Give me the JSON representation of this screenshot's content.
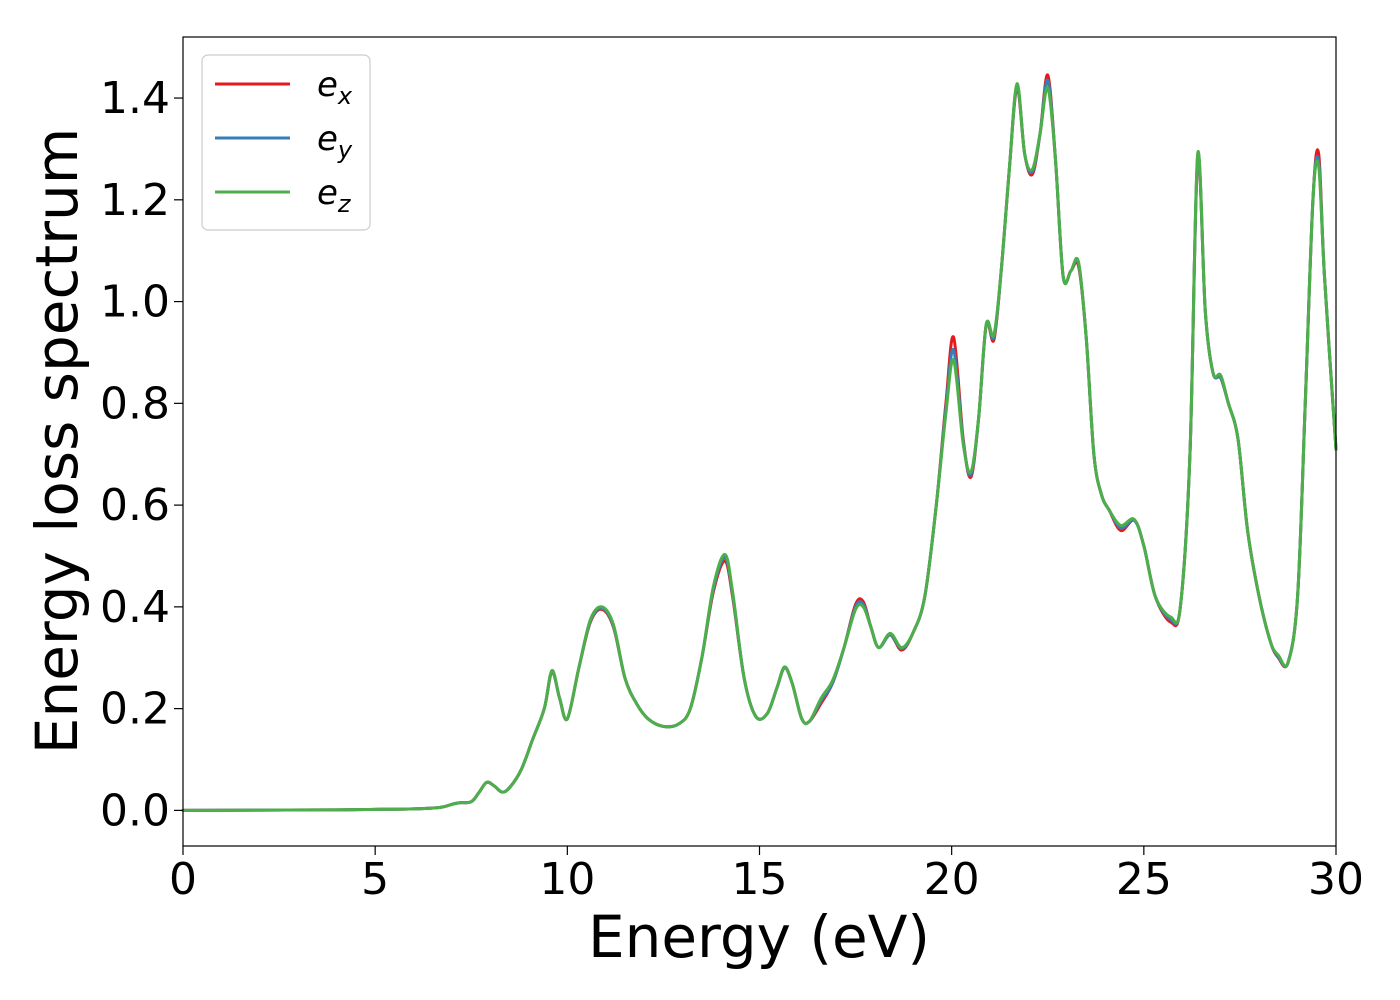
{
  "chart_data": {
    "type": "line",
    "xlabel": "Energy (eV)",
    "ylabel": "Energy loss spectrum",
    "xlim": [
      0,
      30
    ],
    "ylim": [
      -0.07,
      1.52
    ],
    "xticks": [
      0,
      5,
      10,
      15,
      20,
      25,
      30
    ],
    "xtick_labels": [
      "0",
      "5",
      "10",
      "15",
      "20",
      "25",
      "30"
    ],
    "yticks": [
      0.0,
      0.2,
      0.4,
      0.6,
      0.8,
      1.0,
      1.2,
      1.4
    ],
    "ytick_labels": [
      "0.0",
      "0.2",
      "0.4",
      "0.6",
      "0.8",
      "1.0",
      "1.2",
      "1.4"
    ],
    "grid": false,
    "legend_position": "top-left",
    "series": [
      {
        "name": "e_x",
        "legend_base": "e",
        "legend_sub": "x",
        "color": "#e41a1c",
        "x": [
          0,
          2,
          4,
          5,
          6,
          6.7,
          7.0,
          7.2,
          7.5,
          7.7,
          7.9,
          8.1,
          8.3,
          8.5,
          8.8,
          9.1,
          9.4,
          9.6,
          9.8,
          10.0,
          10.3,
          10.6,
          10.9,
          11.2,
          11.5,
          11.8,
          12.1,
          12.5,
          12.9,
          13.2,
          13.5,
          13.8,
          14.1,
          14.3,
          14.6,
          14.9,
          15.2,
          15.45,
          15.65,
          15.85,
          16.1,
          16.3,
          16.6,
          16.9,
          17.2,
          17.5,
          17.7,
          17.9,
          18.1,
          18.4,
          18.7,
          19.0,
          19.3,
          19.6,
          19.85,
          20.05,
          20.3,
          20.5,
          20.7,
          20.9,
          21.1,
          21.3,
          21.5,
          21.7,
          21.9,
          22.1,
          22.3,
          22.5,
          22.7,
          22.9,
          23.1,
          23.3,
          23.5,
          23.7,
          23.9,
          24.1,
          24.4,
          24.75,
          25.0,
          25.3,
          25.7,
          25.95,
          26.2,
          26.4,
          26.6,
          26.8,
          27.0,
          27.2,
          27.45,
          27.7,
          28.0,
          28.3,
          28.5,
          28.75,
          29.0,
          29.2,
          29.4,
          29.55,
          29.7,
          30.0
        ],
        "values": [
          0.0,
          0.0005,
          0.001,
          0.002,
          0.003,
          0.006,
          0.012,
          0.015,
          0.017,
          0.035,
          0.055,
          0.048,
          0.036,
          0.045,
          0.08,
          0.14,
          0.2,
          0.272,
          0.22,
          0.18,
          0.28,
          0.37,
          0.395,
          0.36,
          0.26,
          0.21,
          0.18,
          0.165,
          0.17,
          0.2,
          0.3,
          0.43,
          0.49,
          0.42,
          0.26,
          0.185,
          0.19,
          0.24,
          0.28,
          0.25,
          0.18,
          0.175,
          0.21,
          0.25,
          0.32,
          0.405,
          0.41,
          0.36,
          0.32,
          0.345,
          0.315,
          0.35,
          0.42,
          0.6,
          0.8,
          0.93,
          0.73,
          0.655,
          0.77,
          0.955,
          0.925,
          1.07,
          1.26,
          1.42,
          1.29,
          1.25,
          1.33,
          1.445,
          1.28,
          1.05,
          1.06,
          1.07,
          0.93,
          0.7,
          0.62,
          0.59,
          0.55,
          0.57,
          0.52,
          0.42,
          0.37,
          0.4,
          0.7,
          1.28,
          0.98,
          0.86,
          0.85,
          0.8,
          0.73,
          0.55,
          0.42,
          0.33,
          0.3,
          0.29,
          0.42,
          0.8,
          1.2,
          1.29,
          1.05,
          0.71
        ]
      },
      {
        "name": "e_y",
        "legend_base": "e",
        "legend_sub": "y",
        "color": "#377eb8",
        "x": [
          0,
          2,
          4,
          5,
          6,
          6.7,
          7.0,
          7.2,
          7.5,
          7.7,
          7.9,
          8.1,
          8.3,
          8.5,
          8.8,
          9.1,
          9.4,
          9.6,
          9.8,
          10.0,
          10.3,
          10.6,
          10.9,
          11.2,
          11.5,
          11.8,
          12.1,
          12.5,
          12.9,
          13.2,
          13.5,
          13.8,
          14.1,
          14.3,
          14.6,
          14.9,
          15.2,
          15.45,
          15.65,
          15.85,
          16.1,
          16.3,
          16.6,
          16.9,
          17.2,
          17.5,
          17.7,
          17.9,
          18.1,
          18.4,
          18.7,
          19.0,
          19.3,
          19.6,
          19.85,
          20.05,
          20.3,
          20.5,
          20.7,
          20.9,
          21.1,
          21.3,
          21.5,
          21.7,
          21.9,
          22.1,
          22.3,
          22.5,
          22.7,
          22.9,
          23.1,
          23.3,
          23.5,
          23.7,
          23.9,
          24.1,
          24.4,
          24.75,
          25.0,
          25.3,
          25.7,
          25.95,
          26.2,
          26.4,
          26.6,
          26.8,
          27.0,
          27.2,
          27.45,
          27.7,
          28.0,
          28.3,
          28.5,
          28.75,
          29.0,
          29.2,
          29.4,
          29.55,
          29.7,
          30.0
        ],
        "values": [
          0.0,
          0.0005,
          0.001,
          0.002,
          0.003,
          0.006,
          0.012,
          0.015,
          0.017,
          0.035,
          0.055,
          0.048,
          0.036,
          0.045,
          0.08,
          0.14,
          0.2,
          0.273,
          0.22,
          0.18,
          0.28,
          0.372,
          0.397,
          0.362,
          0.26,
          0.21,
          0.18,
          0.165,
          0.17,
          0.2,
          0.3,
          0.435,
          0.497,
          0.425,
          0.26,
          0.185,
          0.19,
          0.24,
          0.28,
          0.25,
          0.18,
          0.175,
          0.215,
          0.25,
          0.32,
          0.4,
          0.405,
          0.36,
          0.32,
          0.345,
          0.318,
          0.35,
          0.42,
          0.6,
          0.79,
          0.905,
          0.725,
          0.66,
          0.77,
          0.955,
          0.93,
          1.07,
          1.26,
          1.425,
          1.29,
          1.255,
          1.33,
          1.435,
          1.28,
          1.05,
          1.06,
          1.075,
          0.93,
          0.7,
          0.62,
          0.59,
          0.555,
          0.57,
          0.52,
          0.42,
          0.375,
          0.4,
          0.7,
          1.285,
          0.98,
          0.86,
          0.85,
          0.8,
          0.73,
          0.55,
          0.42,
          0.33,
          0.302,
          0.29,
          0.42,
          0.8,
          1.2,
          1.275,
          1.05,
          0.71
        ]
      },
      {
        "name": "e_z",
        "legend_base": "e",
        "legend_sub": "z",
        "color": "#4daf4a",
        "x": [
          0,
          2,
          4,
          5,
          6,
          6.7,
          7.0,
          7.2,
          7.5,
          7.7,
          7.9,
          8.1,
          8.3,
          8.5,
          8.8,
          9.1,
          9.4,
          9.6,
          9.8,
          10.0,
          10.3,
          10.6,
          10.9,
          11.2,
          11.5,
          11.8,
          12.1,
          12.5,
          12.9,
          13.2,
          13.5,
          13.8,
          14.1,
          14.3,
          14.6,
          14.9,
          15.2,
          15.45,
          15.65,
          15.85,
          16.1,
          16.3,
          16.6,
          16.9,
          17.2,
          17.5,
          17.7,
          17.9,
          18.1,
          18.4,
          18.7,
          19.0,
          19.3,
          19.6,
          19.85,
          20.05,
          20.3,
          20.5,
          20.7,
          20.9,
          21.1,
          21.3,
          21.5,
          21.7,
          21.9,
          22.1,
          22.3,
          22.5,
          22.7,
          22.9,
          23.1,
          23.3,
          23.5,
          23.7,
          23.9,
          24.1,
          24.4,
          24.75,
          25.0,
          25.3,
          25.7,
          25.95,
          26.2,
          26.4,
          26.6,
          26.8,
          27.0,
          27.2,
          27.45,
          27.7,
          28.0,
          28.3,
          28.5,
          28.75,
          29.0,
          29.2,
          29.4,
          29.55,
          29.7,
          30.0
        ],
        "values": [
          0.0,
          0.0005,
          0.001,
          0.002,
          0.003,
          0.006,
          0.012,
          0.015,
          0.017,
          0.035,
          0.055,
          0.048,
          0.036,
          0.045,
          0.08,
          0.14,
          0.2,
          0.275,
          0.22,
          0.18,
          0.28,
          0.375,
          0.4,
          0.365,
          0.26,
          0.21,
          0.18,
          0.165,
          0.17,
          0.2,
          0.3,
          0.44,
          0.503,
          0.43,
          0.26,
          0.185,
          0.19,
          0.24,
          0.282,
          0.25,
          0.18,
          0.175,
          0.22,
          0.255,
          0.32,
          0.395,
          0.4,
          0.36,
          0.32,
          0.348,
          0.32,
          0.35,
          0.42,
          0.6,
          0.78,
          0.885,
          0.72,
          0.665,
          0.77,
          0.955,
          0.935,
          1.07,
          1.26,
          1.428,
          1.29,
          1.26,
          1.33,
          1.42,
          1.28,
          1.05,
          1.06,
          1.078,
          0.93,
          0.7,
          0.62,
          0.59,
          0.56,
          0.572,
          0.52,
          0.42,
          0.38,
          0.4,
          0.7,
          1.29,
          0.98,
          0.86,
          0.855,
          0.8,
          0.73,
          0.55,
          0.42,
          0.33,
          0.305,
          0.29,
          0.42,
          0.8,
          1.2,
          1.265,
          1.05,
          0.71
        ]
      }
    ]
  }
}
